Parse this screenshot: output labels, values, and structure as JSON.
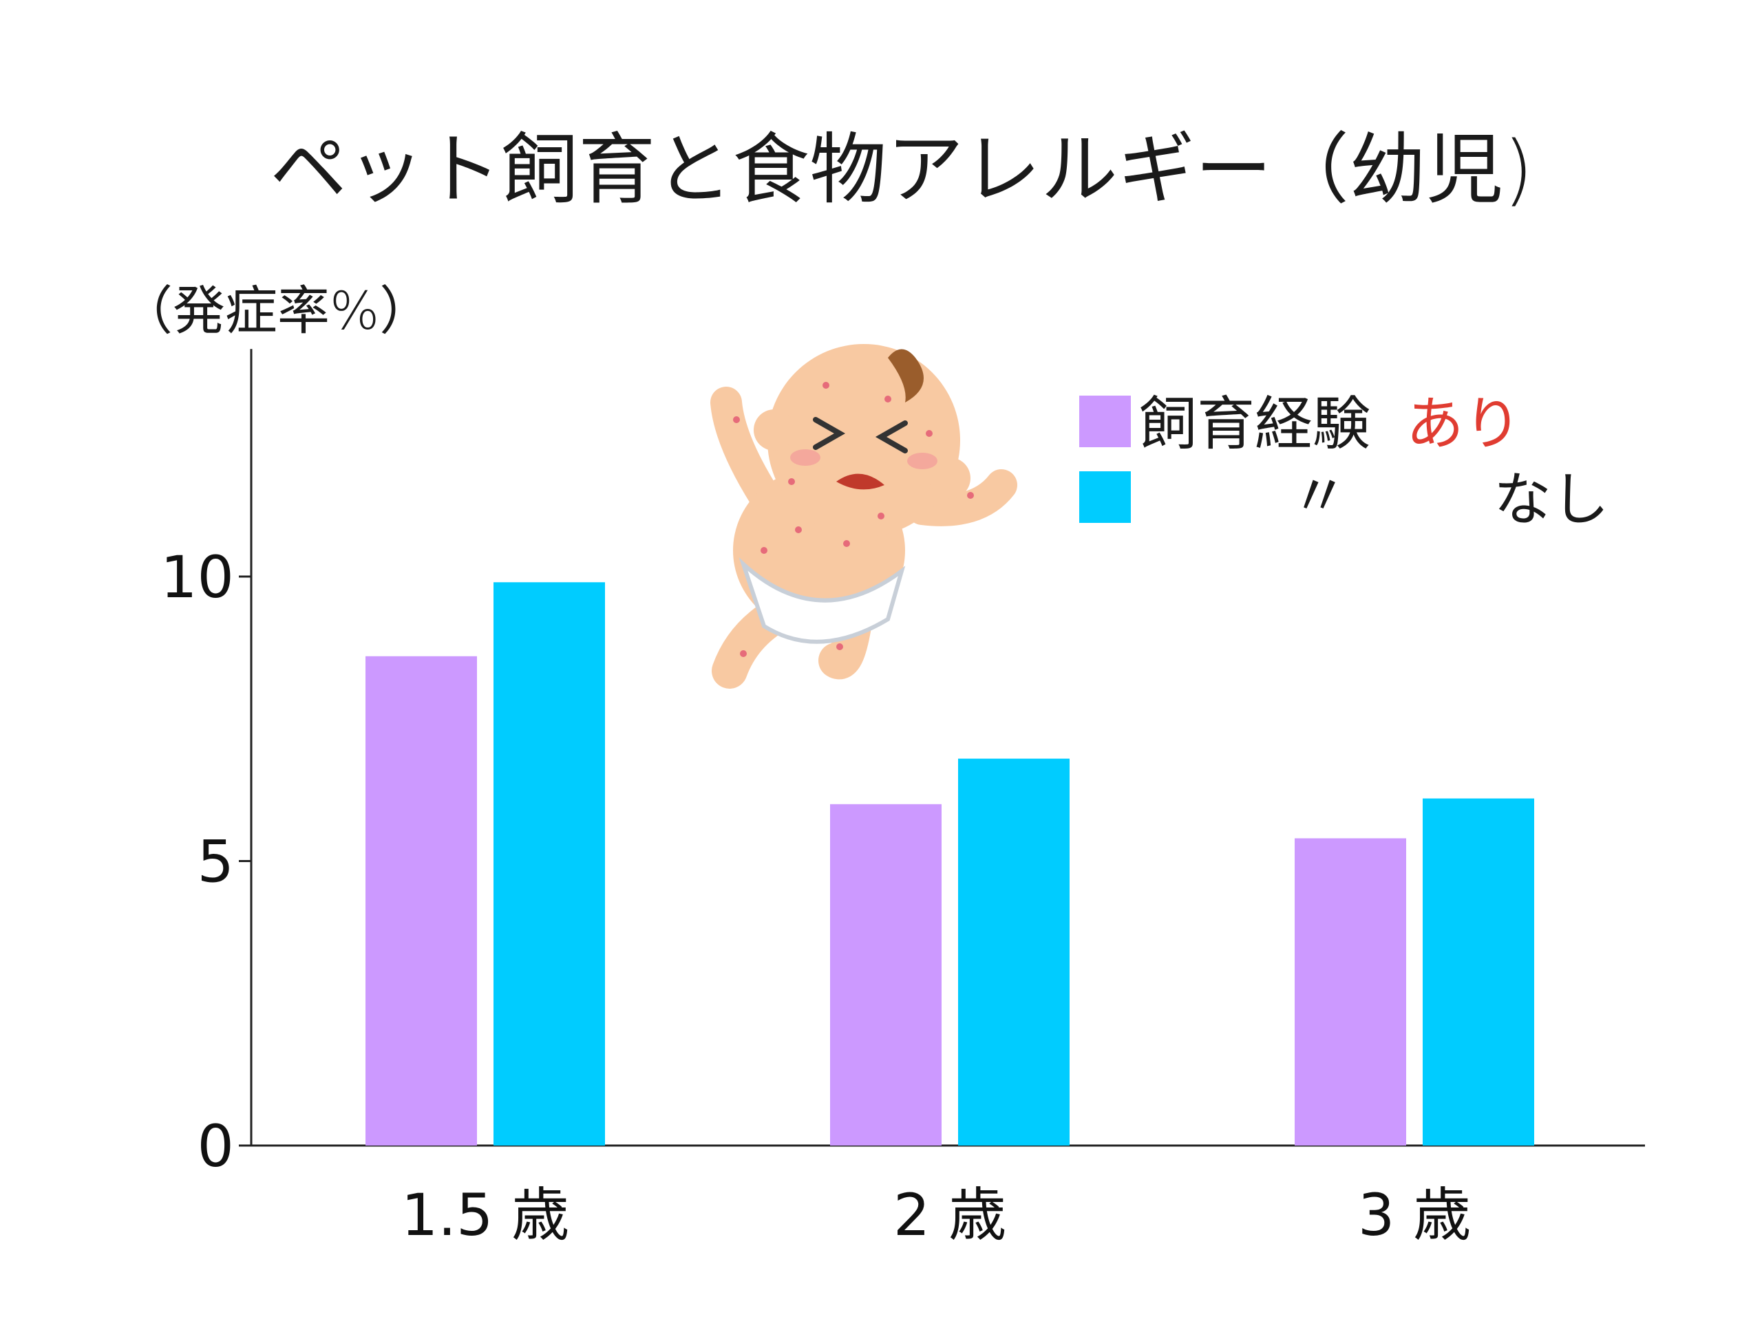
{
  "chart_data": {
    "type": "bar",
    "title": "ペット飼育と食物アレルギー（幼児)",
    "ylabel": "（発症率%）",
    "xlabel": "",
    "categories": [
      "1.5 歳",
      "2 歳",
      "3 歳"
    ],
    "ylim": [
      0,
      14
    ],
    "yticks": [
      0,
      5,
      10
    ],
    "series": [
      {
        "values": [
          8.6,
          6.0,
          5.4
        ],
        "color": "#cc99ff"
      },
      {
        "values": [
          9.9,
          6.8,
          6.1
        ],
        "color": "#00ccff"
      }
    ],
    "legend": {
      "position": "top-right",
      "entries": [
        {
          "prefix": "飼育経験",
          "suffix": "あり",
          "suffix_color": "#e03c31",
          "color": "#cc99ff"
        },
        {
          "prefix": "〃",
          "suffix": "なし",
          "suffix_color": "#1a1a1a",
          "color": "#00ccff"
        }
      ]
    },
    "grid": false,
    "decoration_icon": "baby-with-rash-icon"
  }
}
